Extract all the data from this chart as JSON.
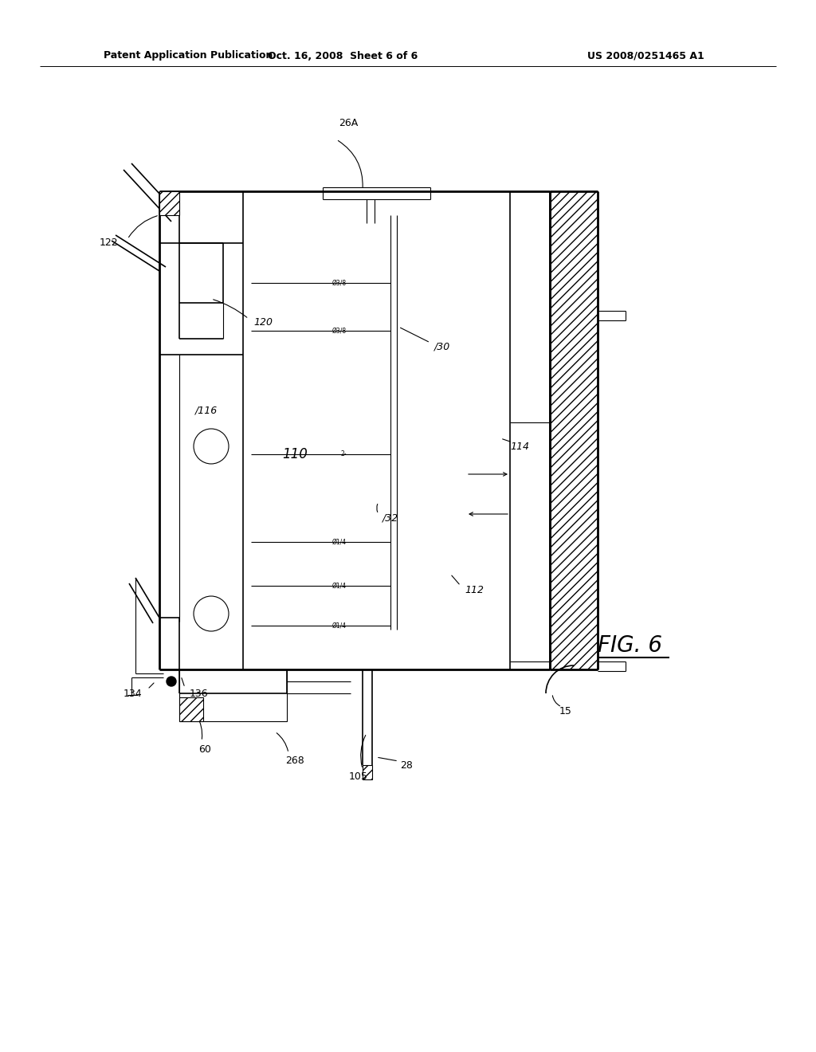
{
  "header_left": "Patent Application Publication",
  "header_mid": "Oct. 16, 2008  Sheet 6 of 6",
  "header_right": "US 2008/0251465 A1",
  "fig_label": "FIG. 6",
  "background": "#ffffff",
  "line_color": "#000000"
}
